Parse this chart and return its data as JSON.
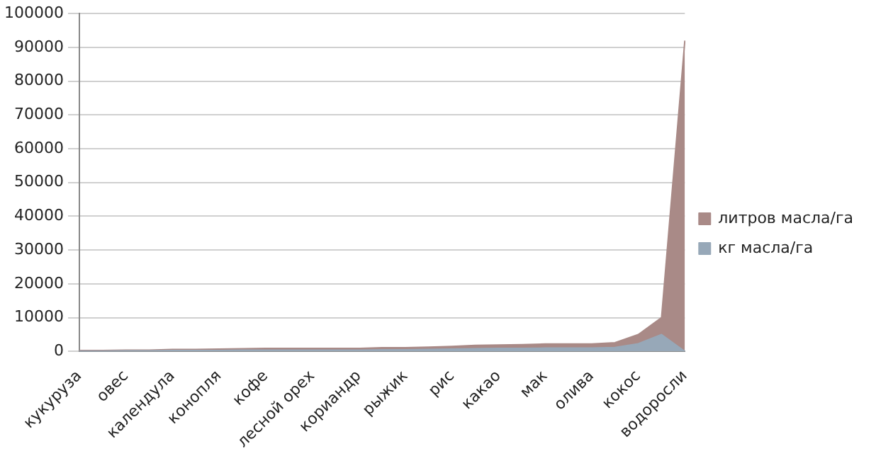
{
  "chart_data": {
    "type": "area",
    "stacked": true,
    "categories": [
      "кукуруза",
      null,
      "овес",
      null,
      "календула",
      null,
      "конопля",
      null,
      "кофе",
      null,
      "лесной орех",
      null,
      "кориандр",
      null,
      "рыжик",
      null,
      "рис",
      null,
      "какао",
      null,
      "мак",
      null,
      "олива",
      null,
      "кокос",
      null,
      "водоросли"
    ],
    "series": [
      {
        "name": "кг масла/га",
        "color": "#97a8b8",
        "values": [
          100,
          100,
          200,
          200,
          300,
          300,
          300,
          400,
          400,
          400,
          400,
          400,
          400,
          500,
          500,
          600,
          700,
          800,
          900,
          900,
          1000,
          1000,
          1000,
          1200,
          2300,
          5000,
          0
        ]
      },
      {
        "name": "литров масла/га",
        "color": "#a98a87",
        "values": [
          200,
          200,
          200,
          200,
          300,
          300,
          400,
          400,
          500,
          500,
          500,
          500,
          500,
          600,
          600,
          700,
          800,
          1000,
          1000,
          1100,
          1200,
          1200,
          1200,
          1400,
          2700,
          5000,
          92000
        ]
      }
    ],
    "ylim": [
      0,
      100000
    ],
    "yticks": [
      0,
      10000,
      20000,
      30000,
      40000,
      50000,
      60000,
      70000,
      80000,
      90000,
      100000
    ],
    "grid": "y",
    "legend": "right"
  }
}
